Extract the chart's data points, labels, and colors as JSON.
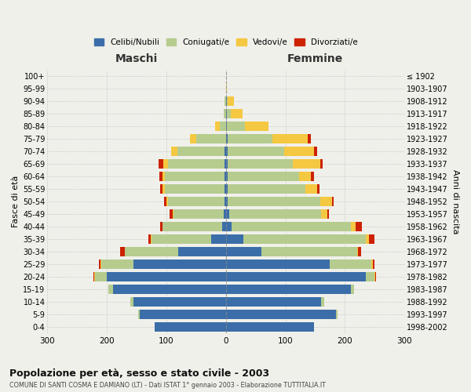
{
  "age_groups": [
    "0-4",
    "5-9",
    "10-14",
    "15-19",
    "20-24",
    "25-29",
    "30-34",
    "35-39",
    "40-44",
    "45-49",
    "50-54",
    "55-59",
    "60-64",
    "65-69",
    "70-74",
    "75-79",
    "80-84",
    "85-89",
    "90-94",
    "95-99",
    "100+"
  ],
  "birth_years": [
    "1998-2002",
    "1993-1997",
    "1988-1992",
    "1983-1987",
    "1978-1982",
    "1973-1977",
    "1968-1972",
    "1963-1967",
    "1958-1962",
    "1953-1957",
    "1948-1952",
    "1943-1947",
    "1938-1942",
    "1933-1937",
    "1928-1932",
    "1923-1927",
    "1918-1922",
    "1913-1917",
    "1908-1912",
    "1903-1907",
    "≤ 1902"
  ],
  "males": {
    "celibi": [
      120,
      145,
      155,
      190,
      200,
      155,
      80,
      25,
      6,
      3,
      2,
      2,
      2,
      2,
      2,
      0,
      0,
      0,
      0,
      0,
      0
    ],
    "coniugati": [
      0,
      2,
      5,
      8,
      20,
      55,
      90,
      100,
      100,
      85,
      95,
      100,
      100,
      95,
      80,
      50,
      10,
      4,
      2,
      0,
      0
    ],
    "vedovi": [
      0,
      0,
      0,
      0,
      1,
      1,
      0,
      1,
      1,
      2,
      3,
      4,
      5,
      8,
      10,
      10,
      8,
      0,
      0,
      0,
      0
    ],
    "divorziati": [
      0,
      0,
      0,
      0,
      2,
      3,
      8,
      4,
      3,
      4,
      4,
      5,
      5,
      8,
      0,
      0,
      0,
      0,
      0,
      0,
      0
    ]
  },
  "females": {
    "nubili": [
      148,
      185,
      160,
      210,
      235,
      175,
      60,
      30,
      10,
      5,
      3,
      3,
      3,
      3,
      3,
      3,
      2,
      2,
      1,
      0,
      0
    ],
    "coniugate": [
      0,
      2,
      5,
      5,
      15,
      70,
      160,
      205,
      200,
      155,
      155,
      130,
      120,
      110,
      95,
      75,
      30,
      6,
      2,
      0,
      0
    ],
    "vedove": [
      0,
      0,
      0,
      0,
      1,
      2,
      2,
      5,
      8,
      10,
      20,
      20,
      20,
      45,
      50,
      60,
      40,
      20,
      10,
      2,
      0
    ],
    "divorziate": [
      0,
      0,
      0,
      0,
      1,
      2,
      5,
      10,
      10,
      3,
      3,
      4,
      5,
      5,
      5,
      5,
      0,
      0,
      0,
      0,
      0
    ]
  },
  "colors": {
    "celibi": "#3b6ea8",
    "coniugati": "#b5cc8e",
    "vedovi": "#f5c842",
    "divorziati": "#cc2200"
  },
  "legend_labels": [
    "Celibi/Nubili",
    "Coniugati/e",
    "Vedovi/e",
    "Divorziati/e"
  ],
  "title": "Popolazione per età, sesso e stato civile - 2003",
  "subtitle": "COMUNE DI SANTI COSMA E DAMIANO (LT) - Dati ISTAT 1° gennaio 2003 - Elaborazione TUTTITALIA.IT",
  "xlabel_left": "Maschi",
  "xlabel_right": "Femmine",
  "ylabel_left": "Fasce di età",
  "ylabel_right": "Anni di nascita",
  "xlim": 300,
  "bg_color": "#f0f0eb",
  "grid_color": "#cccccc"
}
